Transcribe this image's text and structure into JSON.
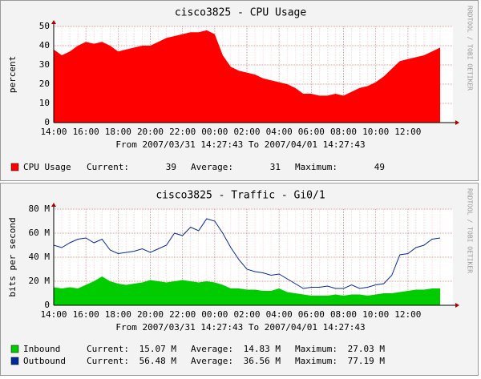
{
  "chart_data": [
    {
      "type": "area",
      "title": "cisco3825 - CPU Usage",
      "y_label": "percent",
      "x_label": "From 2007/03/31 14:27:43 To 2007/04/01 14:27:43",
      "watermark": "RRDTOOL / TOBI OETIKER",
      "x": [
        "14:00",
        "14:30",
        "15:00",
        "15:30",
        "16:00",
        "16:30",
        "17:00",
        "17:30",
        "18:00",
        "18:30",
        "19:00",
        "19:30",
        "20:00",
        "20:30",
        "21:00",
        "21:30",
        "22:00",
        "22:30",
        "23:00",
        "23:30",
        "00:00",
        "00:30",
        "01:00",
        "01:30",
        "02:00",
        "02:30",
        "03:00",
        "03:30",
        "04:00",
        "04:30",
        "05:00",
        "05:30",
        "06:00",
        "06:30",
        "07:00",
        "07:30",
        "08:00",
        "08:30",
        "09:00",
        "09:30",
        "10:00",
        "10:30",
        "11:00",
        "11:30",
        "12:00",
        "12:30",
        "13:00",
        "13:30",
        "14:00"
      ],
      "xticks": [
        "16:00",
        "18:00",
        "20:00",
        "22:00",
        "00:00",
        "02:00",
        "04:00",
        "06:00",
        "08:00",
        "10:00",
        "12:00",
        "14:00"
      ],
      "ylim": [
        0,
        50
      ],
      "yticks": [
        0,
        10,
        20,
        30,
        40,
        50
      ],
      "grid": true,
      "series": [
        {
          "name": "CPU Usage",
          "color": "#ff0000",
          "style": "area",
          "stats": [
            {
              "label": "Current:",
              "value": "39"
            },
            {
              "label": "Average:",
              "value": "31"
            },
            {
              "label": "Maximum:",
              "value": "49"
            }
          ],
          "values": [
            38,
            35,
            37,
            40,
            42,
            41,
            42,
            40,
            37,
            38,
            39,
            40,
            40,
            42,
            44,
            45,
            46,
            47,
            47,
            48,
            46,
            35,
            29,
            27,
            26,
            25,
            23,
            22,
            21,
            20,
            18,
            15,
            15,
            14,
            14,
            15,
            14,
            16,
            18,
            19,
            21,
            24,
            28,
            32,
            33,
            34,
            35,
            37,
            39
          ]
        }
      ]
    },
    {
      "type": "area",
      "title": "cisco3825 - Traffic - Gi0/1",
      "y_label": "bits per second",
      "x_label": "From 2007/03/31 14:27:43 To 2007/04/01 14:27:43",
      "watermark": "RRDTOOL / TOBI OETIKER",
      "x": [
        "14:00",
        "14:30",
        "15:00",
        "15:30",
        "16:00",
        "16:30",
        "17:00",
        "17:30",
        "18:00",
        "18:30",
        "19:00",
        "19:30",
        "20:00",
        "20:30",
        "21:00",
        "21:30",
        "22:00",
        "22:30",
        "23:00",
        "23:30",
        "00:00",
        "00:30",
        "01:00",
        "01:30",
        "02:00",
        "02:30",
        "03:00",
        "03:30",
        "04:00",
        "04:30",
        "05:00",
        "05:30",
        "06:00",
        "06:30",
        "07:00",
        "07:30",
        "08:00",
        "08:30",
        "09:00",
        "09:30",
        "10:00",
        "10:30",
        "11:00",
        "11:30",
        "12:00",
        "12:30",
        "13:00",
        "13:30",
        "14:00"
      ],
      "xticks": [
        "16:00",
        "18:00",
        "20:00",
        "22:00",
        "00:00",
        "02:00",
        "04:00",
        "06:00",
        "08:00",
        "10:00",
        "12:00",
        "14:00"
      ],
      "ylim": [
        0,
        80
      ],
      "yticks": [
        0,
        {
          "value": 20,
          "label": "20 M"
        },
        {
          "value": 40,
          "label": "40 M"
        },
        {
          "value": 60,
          "label": "60 M"
        },
        {
          "value": 80,
          "label": "80 M"
        }
      ],
      "grid": true,
      "series": [
        {
          "name": "Inbound",
          "color": "#00cc00",
          "style": "area",
          "stats": [
            {
              "label": "Current:",
              "value": "15.07 M"
            },
            {
              "label": "Average:",
              "value": "14.83 M"
            },
            {
              "label": "Maximum:",
              "value": "27.03 M"
            }
          ],
          "values": [
            15,
            14,
            15,
            14,
            17,
            20,
            24,
            20,
            18,
            17,
            18,
            19,
            21,
            20,
            19,
            20,
            21,
            20,
            19,
            20,
            19,
            17,
            14,
            14,
            13,
            13,
            12,
            12,
            14,
            11,
            10,
            9,
            8,
            8,
            8,
            9,
            8,
            9,
            9,
            8,
            9,
            10,
            10,
            11,
            12,
            13,
            13,
            14,
            14
          ]
        },
        {
          "name": "Outbound",
          "color": "#002a97",
          "style": "line",
          "stats": [
            {
              "label": "Current:",
              "value": "56.48 M"
            },
            {
              "label": "Average:",
              "value": "36.56 M"
            },
            {
              "label": "Maximum:",
              "value": "77.19 M"
            }
          ],
          "values": [
            50,
            48,
            52,
            55,
            56,
            52,
            55,
            46,
            43,
            44,
            45,
            47,
            44,
            47,
            50,
            60,
            58,
            65,
            62,
            72,
            70,
            60,
            48,
            38,
            30,
            28,
            27,
            25,
            26,
            22,
            18,
            14,
            15,
            15,
            16,
            14,
            14,
            17,
            14,
            15,
            17,
            18,
            25,
            42,
            43,
            48,
            50,
            55,
            56
          ]
        }
      ]
    }
  ]
}
